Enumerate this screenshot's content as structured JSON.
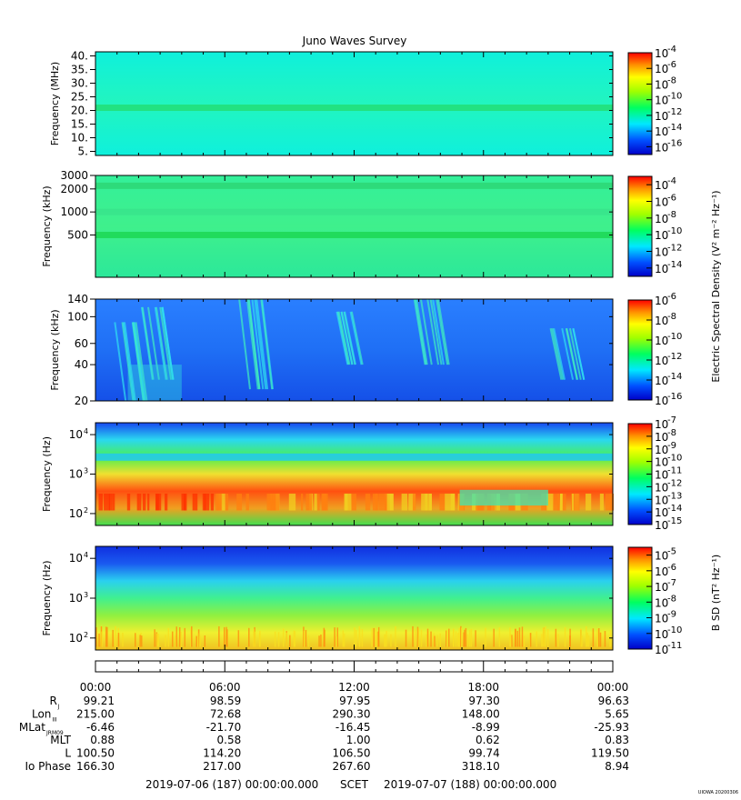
{
  "title": "Juno Waves Survey",
  "stamp": "UIOWA 20200306",
  "chart_data": [
    {
      "type": "heatmap",
      "ylabel": "Frequency (MHz)",
      "yscale": "linear",
      "ylim": [
        3.5,
        41.5
      ],
      "ytick_values": [
        5,
        10,
        15,
        20,
        25,
        30,
        35,
        40
      ],
      "ytick_labels": [
        "5.",
        "10.",
        "15.",
        "20.",
        "25.",
        "30.",
        "35.",
        "40."
      ],
      "colorbar": {
        "scale": "log",
        "range_exp": [
          -17,
          -4
        ],
        "tick_exps": [
          -4,
          -6,
          -8,
          -10,
          -12,
          -14,
          -16
        ],
        "tick_labels": [
          "-4",
          "-6",
          "-8",
          "-10",
          "-12",
          "-14",
          "-16"
        ]
      },
      "background_colors": [
        "#0ff0dc",
        "#22f5bf",
        "#0ff0dc"
      ],
      "bands": [
        {
          "y": 21,
          "color": "#22e07a"
        }
      ]
    },
    {
      "type": "heatmap",
      "ylabel": "Frequency (kHz)",
      "yscale": "log",
      "ylim": [
        140,
        3000
      ],
      "ytick_values": [
        500,
        1000,
        2000,
        3000
      ],
      "ytick_labels": [
        "500",
        "1000",
        "2000",
        "3000"
      ],
      "colorbar": {
        "scale": "log",
        "range_exp": [
          -15,
          -3
        ],
        "tick_exps": [
          -4,
          -6,
          -8,
          -10,
          -12,
          -14
        ],
        "tick_labels": [
          "-4",
          "-6",
          "-8",
          "-10",
          "-12",
          "-14"
        ]
      },
      "background_colors": [
        "#33f09a",
        "#3ff08c",
        "#2ce89a"
      ],
      "bands": [
        {
          "y": 500,
          "color": "#1ed856"
        },
        {
          "y": 2200,
          "color": "#2cd877"
        },
        {
          "y": 1000,
          "color": "#38e48c"
        }
      ]
    },
    {
      "type": "heatmap",
      "ylabel": "Frequency (kHz)",
      "yscale": "log",
      "ylim": [
        20,
        140
      ],
      "ytick_values": [
        20,
        40,
        60,
        100,
        140
      ],
      "ytick_labels": [
        "20",
        "40",
        "60",
        "100",
        "140"
      ],
      "colorbar": {
        "scale": "log",
        "range_exp": [
          -16,
          -6
        ],
        "tick_exps": [
          -6,
          -8,
          -10,
          -12,
          -14,
          -16
        ],
        "tick_labels": [
          "-6",
          "-8",
          "-10",
          "-12",
          "-14",
          "-16"
        ]
      },
      "background_colors": [
        "#2a7fff",
        "#1f6ff5",
        "#1550e8"
      ],
      "bands": []
    },
    {
      "type": "heatmap",
      "ylabel": "Frequency (Hz)",
      "yscale": "log",
      "ylim": [
        50,
        20000
      ],
      "ytick_values": [
        100,
        1000,
        10000
      ],
      "ytick_labels": [
        "10",
        "10",
        "10"
      ],
      "ytick_exps": [
        "2",
        "3",
        "4"
      ],
      "colorbar": {
        "scale": "log",
        "range_exp": [
          -15,
          -7
        ],
        "tick_exps": [
          -7,
          -8,
          -9,
          -10,
          -11,
          -12,
          -13,
          -14,
          -15
        ],
        "tick_labels": [
          "-7",
          "-8",
          "-9",
          "-10",
          "-11",
          "-12",
          "-13",
          "-14",
          "-15"
        ]
      },
      "background_colors": [
        "#1848f0",
        "#2ad8f0",
        "#4cf050",
        "#f0e030",
        "#ff5010",
        "#f0a020",
        "#40e050"
      ],
      "bands": []
    },
    {
      "type": "heatmap",
      "ylabel": "Frequency (Hz)",
      "yscale": "log",
      "ylim": [
        50,
        20000
      ],
      "ytick_values": [
        100,
        1000,
        10000
      ],
      "ytick_labels": [
        "10",
        "10",
        "10"
      ],
      "ytick_exps": [
        "2",
        "3",
        "4"
      ],
      "colorbar": {
        "scale": "log",
        "range_exp": [
          -11,
          -4.5
        ],
        "tick_exps": [
          -5,
          -6,
          -7,
          -8,
          -9,
          -10,
          -11
        ],
        "tick_labels": [
          "-5",
          "-6",
          "-7",
          "-8",
          "-9",
          "-10",
          "-11"
        ]
      },
      "background_colors": [
        "#1030e0",
        "#1a5af0",
        "#2ad0f0",
        "#40f090",
        "#90f040",
        "#f0f030",
        "#f0c020"
      ],
      "bands": []
    }
  ],
  "colorbar_labels": {
    "electric": "Electric Spectral Density (V² m⁻² Hz⁻¹)",
    "magnetic": "B SD (nT² Hz⁻¹)"
  },
  "colorbar_tick_base": "10",
  "time_axis": {
    "hours": [
      0,
      6,
      12,
      18,
      24
    ],
    "labels": [
      "00:00",
      "06:00",
      "12:00",
      "18:00",
      "00:00"
    ]
  },
  "ephemeris": [
    {
      "label": "R",
      "sub": "J",
      "values": [
        "99.21",
        "98.59",
        "97.95",
        "97.30",
        "96.63"
      ]
    },
    {
      "label": "Lon",
      "sub": "III",
      "values": [
        "215.00",
        "72.68",
        "290.30",
        "148.00",
        "5.65"
      ]
    },
    {
      "label": "MLat",
      "sub": "JRM09",
      "values": [
        "-6.46",
        "-21.70",
        "-16.45",
        "-8.99",
        "-25.93"
      ]
    },
    {
      "label": "MLT",
      "sub": "",
      "values": [
        "0.88",
        "0.58",
        "1.00",
        "0.62",
        "0.83"
      ]
    },
    {
      "label": "L",
      "sub": "",
      "values": [
        "100.50",
        "114.20",
        "106.50",
        "99.74",
        "119.50"
      ]
    },
    {
      "label": "Io Phase",
      "sub": "",
      "values": [
        "166.30",
        "217.00",
        "267.60",
        "318.10",
        "8.94"
      ]
    }
  ],
  "footer": {
    "start": "2019-07-06 (187) 00:00:00.000",
    "scet": "SCET",
    "end": "2019-07-07 (188) 00:00:00.000"
  }
}
